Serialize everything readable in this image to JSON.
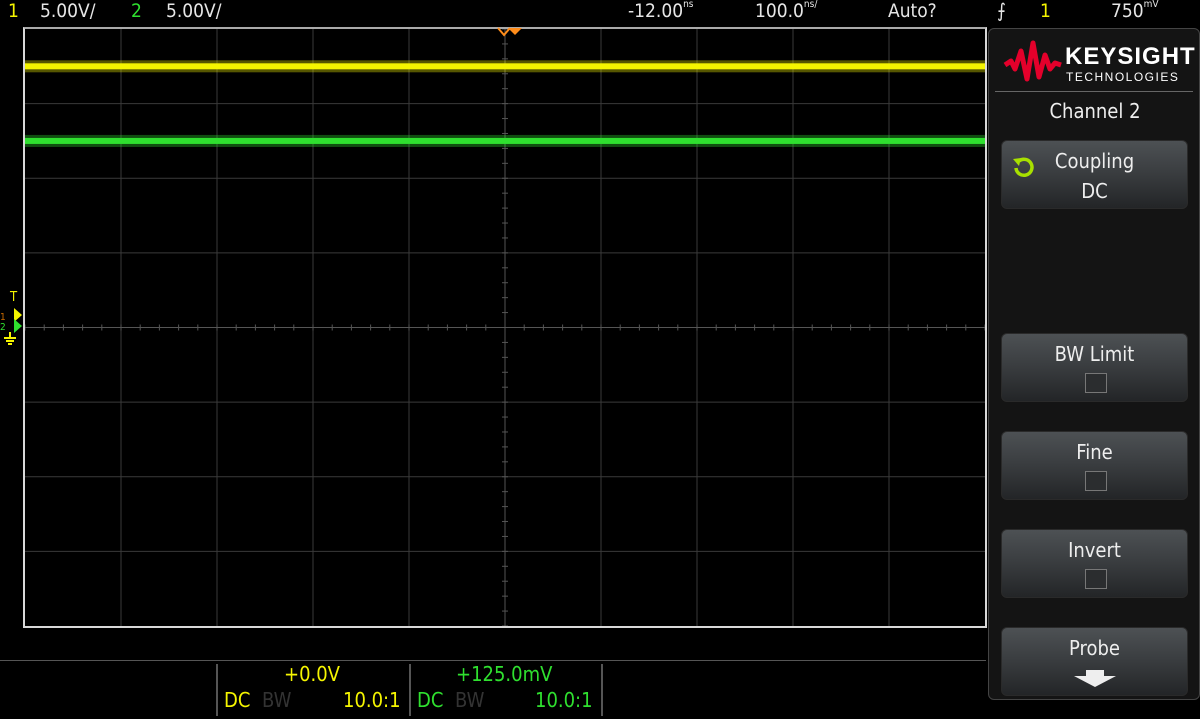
{
  "header": {
    "ch1_label": "1",
    "ch1_scale": "5.00V/",
    "ch2_label": "2",
    "ch2_scale": "5.00V/",
    "delay": "-12.00",
    "delay_unit": "ns",
    "timebase": "100.0",
    "timebase_unit": "ns/",
    "trigger_mode": "Auto?",
    "trigger_slope_icon": "rising-edge-icon",
    "trigger_source": "1",
    "trigger_level": "750",
    "trigger_level_unit": "mV"
  },
  "colors": {
    "ch1": "#f5f500",
    "ch2": "#2fe02f",
    "trigger_marker": "#ff8c1a",
    "brand": "#e4002b"
  },
  "traces": {
    "divisions_x": 10,
    "divisions_y": 8,
    "ch1_level_div": 3.5,
    "ch2_level_div": 2.5
  },
  "markers": {
    "trigger": "T",
    "ch1": "1",
    "ch2": "2"
  },
  "panel": {
    "brand": "KEYSIGHT",
    "brand_sub": "TECHNOLOGIES",
    "title": "Channel 2",
    "softkeys": [
      {
        "label": "Coupling",
        "value": "DC",
        "icon": "rotate-icon"
      },
      {
        "label": "BW Limit",
        "checked": false
      },
      {
        "label": "Fine",
        "checked": false
      },
      {
        "label": "Invert",
        "checked": false
      },
      {
        "label": "Probe",
        "icon": "arrow-down-icon"
      }
    ]
  },
  "channel_info": [
    {
      "offset": "+0.0V",
      "coupling": "DC",
      "bw": "BW",
      "probe": "10.0:1"
    },
    {
      "offset": "+125.0mV",
      "coupling": "DC",
      "bw": "BW",
      "probe": "10.0:1"
    }
  ]
}
